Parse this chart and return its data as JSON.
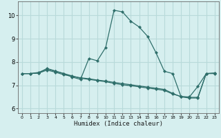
{
  "xlabel": "Humidex (Indice chaleur)",
  "xlim": [
    -0.5,
    23.5
  ],
  "ylim": [
    5.8,
    10.6
  ],
  "yticks": [
    6,
    7,
    8,
    9,
    10
  ],
  "xticks": [
    0,
    1,
    2,
    3,
    4,
    5,
    6,
    7,
    8,
    9,
    10,
    11,
    12,
    13,
    14,
    15,
    16,
    17,
    18,
    19,
    20,
    21,
    22,
    23
  ],
  "bg_color": "#d6efef",
  "grid_color": "#b8dada",
  "line_color": "#2e6e6a",
  "line1": [
    7.5,
    7.5,
    7.55,
    7.7,
    7.6,
    7.5,
    7.35,
    7.25,
    8.15,
    8.05,
    8.62,
    10.22,
    10.15,
    9.75,
    9.5,
    9.1,
    8.4,
    7.6,
    7.5,
    6.5,
    6.5,
    6.95,
    7.5,
    7.5
  ],
  "line2": [
    7.5,
    7.5,
    7.52,
    7.65,
    7.56,
    7.45,
    7.38,
    7.32,
    7.28,
    7.22,
    7.18,
    7.12,
    7.07,
    7.02,
    6.97,
    6.92,
    6.87,
    6.82,
    6.65,
    6.5,
    6.45,
    6.45,
    7.5,
    7.52
  ],
  "line3": [
    7.5,
    7.5,
    7.52,
    7.72,
    7.61,
    7.5,
    7.4,
    7.3,
    7.25,
    7.2,
    7.15,
    7.08,
    7.02,
    6.98,
    6.93,
    6.88,
    6.83,
    6.78,
    6.62,
    6.52,
    6.48,
    6.48,
    7.5,
    7.52
  ]
}
